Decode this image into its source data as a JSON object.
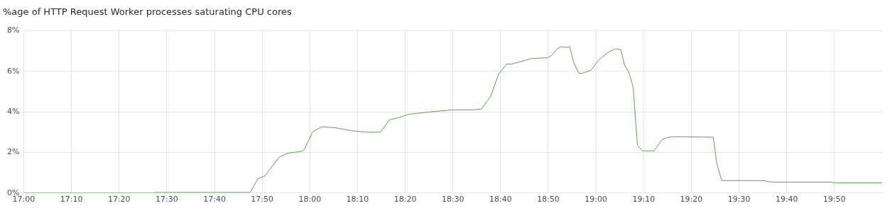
{
  "chart_data": {
    "type": "line",
    "title": "%age of HTTP Request Worker processes saturating CPU cores",
    "x": [
      17.0,
      17.45,
      17.458,
      17.792,
      17.818,
      17.843,
      17.893,
      17.922,
      17.972,
      17.98,
      18.01,
      18.042,
      18.088,
      18.147,
      18.203,
      18.247,
      18.278,
      18.308,
      18.345,
      18.42,
      18.495,
      18.568,
      18.6,
      18.632,
      18.66,
      18.687,
      18.705,
      18.752,
      18.777,
      18.83,
      18.847,
      18.865,
      18.88,
      18.893,
      18.908,
      18.923,
      18.94,
      18.955,
      18.983,
      19.008,
      19.042,
      19.07,
      19.087,
      19.1,
      19.115,
      19.13,
      19.145,
      19.162,
      19.203,
      19.232,
      19.253,
      19.278,
      19.41,
      19.423,
      19.44,
      19.585,
      19.613,
      19.822,
      19.833,
      20.0
    ],
    "series": [
      {
        "color": "#56a64b",
        "values": [
          0,
          0,
          0.03,
          0.03,
          0.7,
          0.85,
          1.77,
          1.96,
          2.06,
          2.14,
          3.02,
          3.27,
          3.22,
          3.07,
          3.0,
          3.0,
          3.61,
          3.71,
          3.88,
          4.0,
          4.1,
          4.1,
          4.15,
          4.77,
          5.87,
          6.36,
          6.36,
          6.54,
          6.64,
          6.67,
          6.81,
          7.12,
          7.22,
          7.18,
          7.22,
          6.42,
          5.91,
          5.91,
          6.06,
          6.54,
          6.94,
          7.12,
          7.07,
          6.3,
          5.96,
          5.22,
          2.36,
          2.08,
          2.08,
          2.65,
          2.75,
          2.78,
          2.75,
          1.41,
          0.61,
          0.61,
          0.54,
          0.54,
          0.5,
          0.5
        ]
      }
    ],
    "xlim": [
      17,
      20
    ],
    "xticks": [
      {
        "value": 17,
        "label": "17:00"
      },
      {
        "value": 17.1667,
        "label": "17:10"
      },
      {
        "value": 17.3333,
        "label": "17:20"
      },
      {
        "value": 17.5,
        "label": "17:30"
      },
      {
        "value": 17.6667,
        "label": "17:40"
      },
      {
        "value": 17.8333,
        "label": "17:50"
      },
      {
        "value": 18,
        "label": "18:00"
      },
      {
        "value": 18.1667,
        "label": "18:10"
      },
      {
        "value": 18.3333,
        "label": "18:20"
      },
      {
        "value": 18.5,
        "label": "18:30"
      },
      {
        "value": 18.6667,
        "label": "18:40"
      },
      {
        "value": 18.8333,
        "label": "18:50"
      },
      {
        "value": 19,
        "label": "19:00"
      },
      {
        "value": 19.1667,
        "label": "19:10"
      },
      {
        "value": 19.3333,
        "label": "19:20"
      },
      {
        "value": 19.5,
        "label": "19:30"
      },
      {
        "value": 19.6667,
        "label": "19:40"
      },
      {
        "value": 19.8333,
        "label": "19:50"
      }
    ],
    "ylim": [
      0,
      8
    ],
    "yticks": [
      {
        "value": 0,
        "label": "0%"
      },
      {
        "value": 2,
        "label": "2%"
      },
      {
        "value": 4,
        "label": "4%"
      },
      {
        "value": 6,
        "label": "6%"
      },
      {
        "value": 8,
        "label": "8%"
      }
    ],
    "grid": true,
    "legend": false,
    "marker": "none",
    "line_style": "solid"
  }
}
